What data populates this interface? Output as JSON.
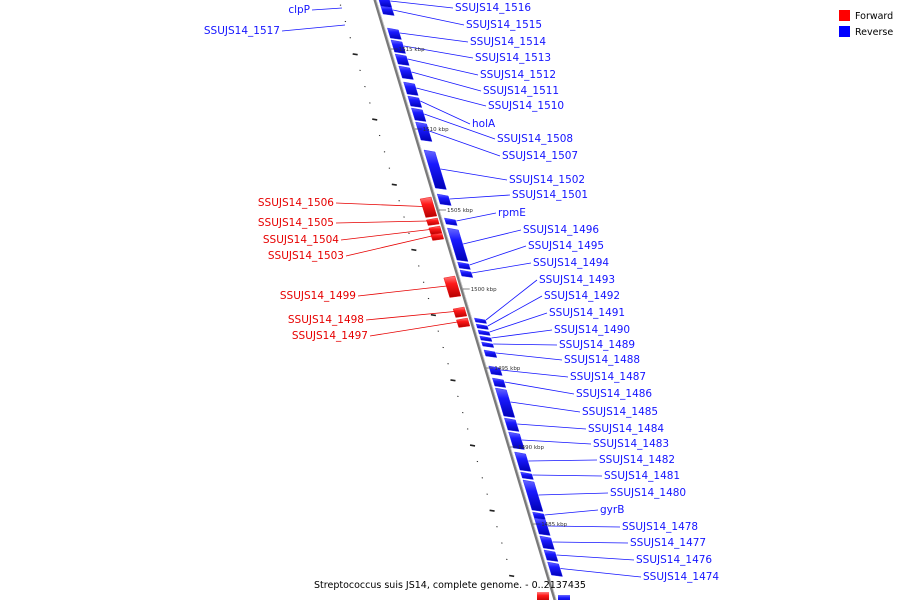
{
  "caption": "Streptococcus suis JS14, complete genome. - 0..2137435",
  "colors": {
    "forward": "#e60000",
    "reverse": "#1414ff",
    "backbone": "#7a7a7a",
    "ruler": "#222222"
  },
  "legend": [
    {
      "label": "Forward",
      "color": "#ff0000"
    },
    {
      "label": "Reverse",
      "color": "#0000ff"
    }
  ],
  "scale_marks": [
    "1515 kbp",
    "1510 kbp",
    "1505 kbp",
    "1500 kbp",
    "1495 kbp",
    "1490 kbp",
    "1485 kbp"
  ],
  "genes": [
    {
      "name": "clpP",
      "strand": "reverse"
    },
    {
      "name": "SSUJS14_1517",
      "strand": "reverse"
    },
    {
      "name": "SSUJS14_1516",
      "strand": "reverse"
    },
    {
      "name": "SSUJS14_1515",
      "strand": "reverse"
    },
    {
      "name": "SSUJS14_1514",
      "strand": "reverse"
    },
    {
      "name": "SSUJS14_1513",
      "strand": "reverse"
    },
    {
      "name": "SSUJS14_1512",
      "strand": "reverse"
    },
    {
      "name": "SSUJS14_1511",
      "strand": "reverse"
    },
    {
      "name": "SSUJS14_1510",
      "strand": "reverse"
    },
    {
      "name": "holA",
      "strand": "reverse"
    },
    {
      "name": "SSUJS14_1508",
      "strand": "reverse"
    },
    {
      "name": "SSUJS14_1507",
      "strand": "reverse"
    },
    {
      "name": "SSUJS14_1506",
      "strand": "forward"
    },
    {
      "name": "SSUJS14_1505",
      "strand": "forward"
    },
    {
      "name": "SSUJS14_1504",
      "strand": "forward"
    },
    {
      "name": "SSUJS14_1503",
      "strand": "forward"
    },
    {
      "name": "SSUJS14_1502",
      "strand": "reverse"
    },
    {
      "name": "SSUJS14_1501",
      "strand": "reverse"
    },
    {
      "name": "rpmE",
      "strand": "reverse"
    },
    {
      "name": "SSUJS14_1499",
      "strand": "forward"
    },
    {
      "name": "SSUJS14_1498",
      "strand": "forward"
    },
    {
      "name": "SSUJS14_1497",
      "strand": "forward"
    },
    {
      "name": "SSUJS14_1496",
      "strand": "reverse"
    },
    {
      "name": "SSUJS14_1495",
      "strand": "reverse"
    },
    {
      "name": "SSUJS14_1494",
      "strand": "reverse"
    },
    {
      "name": "SSUJS14_1493",
      "strand": "reverse"
    },
    {
      "name": "SSUJS14_1492",
      "strand": "reverse"
    },
    {
      "name": "SSUJS14_1491",
      "strand": "reverse"
    },
    {
      "name": "SSUJS14_1490",
      "strand": "reverse"
    },
    {
      "name": "SSUJS14_1489",
      "strand": "reverse"
    },
    {
      "name": "SSUJS14_1488",
      "strand": "reverse"
    },
    {
      "name": "SSUJS14_1487",
      "strand": "reverse"
    },
    {
      "name": "SSUJS14_1486",
      "strand": "reverse"
    },
    {
      "name": "SSUJS14_1485",
      "strand": "reverse"
    },
    {
      "name": "SSUJS14_1484",
      "strand": "reverse"
    },
    {
      "name": "SSUJS14_1483",
      "strand": "reverse"
    },
    {
      "name": "SSUJS14_1482",
      "strand": "reverse"
    },
    {
      "name": "SSUJS14_1481",
      "strand": "reverse"
    },
    {
      "name": "SSUJS14_1480",
      "strand": "reverse"
    },
    {
      "name": "gyrB",
      "strand": "reverse"
    },
    {
      "name": "SSUJS14_1478",
      "strand": "reverse"
    },
    {
      "name": "SSUJS14_1477",
      "strand": "reverse"
    },
    {
      "name": "SSUJS14_1476",
      "strand": "reverse"
    },
    {
      "name": "SSUJS14_1474",
      "strand": "reverse"
    }
  ]
}
